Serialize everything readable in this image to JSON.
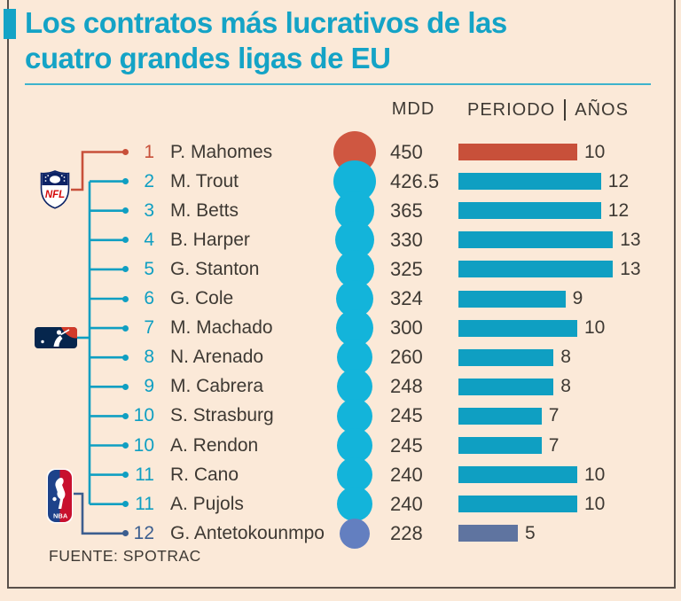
{
  "title": {
    "line1": "Los contratos más lucrativos de las",
    "line2": "cuatro grandes ligas de EU",
    "text": "Los contratos más lucrativos de las cuatro grandes ligas de EU"
  },
  "columns": {
    "mdd": "MDD",
    "periodo": "PERIODO",
    "anios": "AÑOS"
  },
  "source": "FUENTE: SPOTRAC",
  "leagues": [
    {
      "id": "NFL",
      "name": "NFL"
    },
    {
      "id": "MLB",
      "name": "MLB"
    },
    {
      "id": "NBA",
      "name": "NBA"
    }
  ],
  "colors": {
    "background": "#fbe9d8",
    "title_teal": "#14a3c6",
    "rule": "#3db3cd",
    "teal": "#0f9fc2",
    "red": "#c8503a",
    "slate": "#5f74a0",
    "slate_dark": "#3c5e8f",
    "text": "#3e3933",
    "border": "#58504a"
  },
  "chart_data": {
    "type": "bar",
    "title": "Los contratos más lucrativos de las cuatro grandes ligas de EU",
    "value_column_label": "MDD",
    "bar_column_label": "PERIODO | AÑOS",
    "source": "FUENTE: SPOTRAC",
    "bubble_encodes": "MDD (millones de dólares)",
    "bar_encodes": "años de contrato",
    "rows": [
      {
        "rank": "1",
        "player": "P. Mahomes",
        "mdd": 450,
        "years": 10,
        "league": "NFL"
      },
      {
        "rank": "2",
        "player": "M. Trout",
        "mdd": 426.5,
        "years": 12,
        "league": "MLB"
      },
      {
        "rank": "3",
        "player": "M. Betts",
        "mdd": 365,
        "years": 12,
        "league": "MLB"
      },
      {
        "rank": "4",
        "player": "B. Harper",
        "mdd": 330,
        "years": 13,
        "league": "MLB"
      },
      {
        "rank": "5",
        "player": "G. Stanton",
        "mdd": 325,
        "years": 13,
        "league": "MLB"
      },
      {
        "rank": "6",
        "player": "G. Cole",
        "mdd": 324,
        "years": 9,
        "league": "MLB"
      },
      {
        "rank": "7",
        "player": "M. Machado",
        "mdd": 300,
        "years": 10,
        "league": "MLB"
      },
      {
        "rank": "8",
        "player": "N. Arenado",
        "mdd": 260,
        "years": 8,
        "league": "MLB"
      },
      {
        "rank": "9",
        "player": "M. Cabrera",
        "mdd": 248,
        "years": 8,
        "league": "MLB"
      },
      {
        "rank": "10",
        "player": "S. Strasburg",
        "mdd": 245,
        "years": 7,
        "league": "MLB"
      },
      {
        "rank": "10",
        "player": "A. Rendon",
        "mdd": 245,
        "years": 7,
        "league": "MLB"
      },
      {
        "rank": "11",
        "player": "R. Cano",
        "mdd": 240,
        "years": 10,
        "league": "MLB"
      },
      {
        "rank": "11",
        "player": "A. Pujols",
        "mdd": 240,
        "years": 10,
        "league": "MLB"
      },
      {
        "rank": "12",
        "player": "G. Antetokounmpo",
        "mdd": 228,
        "years": 5,
        "league": "NBA"
      }
    ]
  }
}
